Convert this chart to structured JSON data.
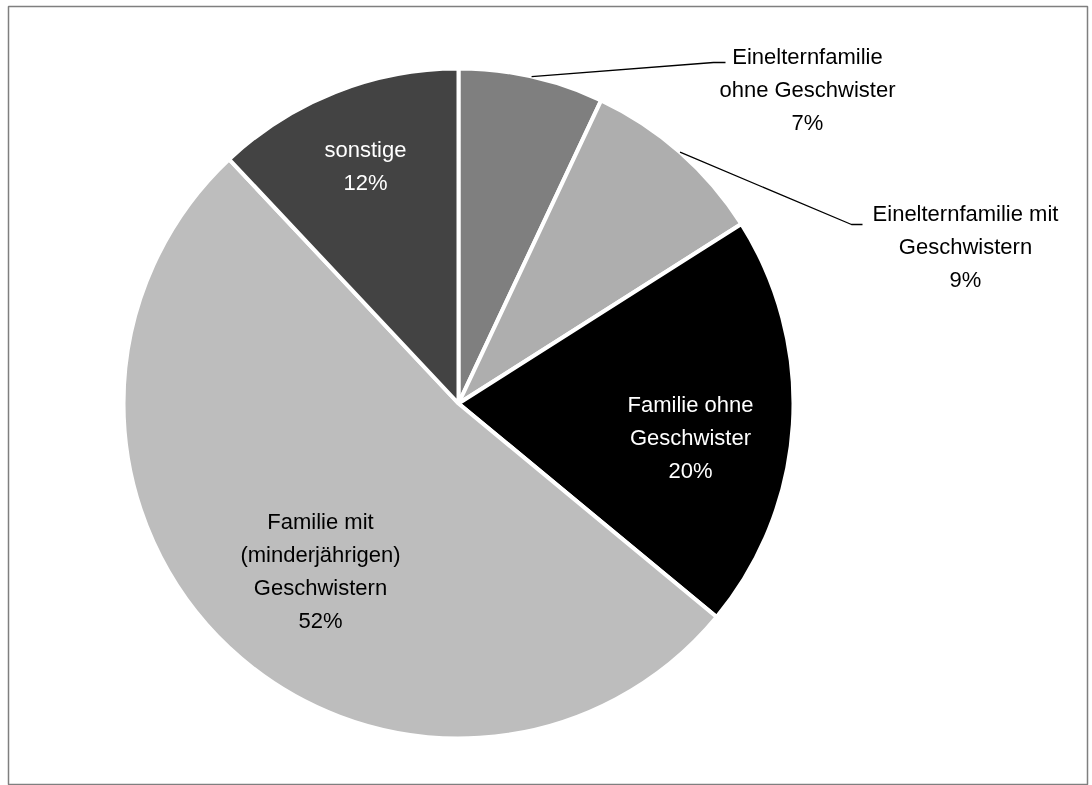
{
  "chart_data": {
    "type": "pie",
    "categories": [
      "Einelternfamilie ohne Geschwister",
      "Einelternfamilie mit Geschwistern",
      "Familie ohne Geschwister",
      "Familie mit (minderjährigen) Geschwistern",
      "sonstige"
    ],
    "values": [
      7,
      9,
      20,
      52,
      12
    ],
    "colors": [
      "#7f7f7f",
      "#aeaeae",
      "#000000",
      "#bdbdbd",
      "#434343"
    ],
    "value_labels": [
      "7%",
      "9%",
      "20%",
      "52%",
      "12%"
    ]
  }
}
